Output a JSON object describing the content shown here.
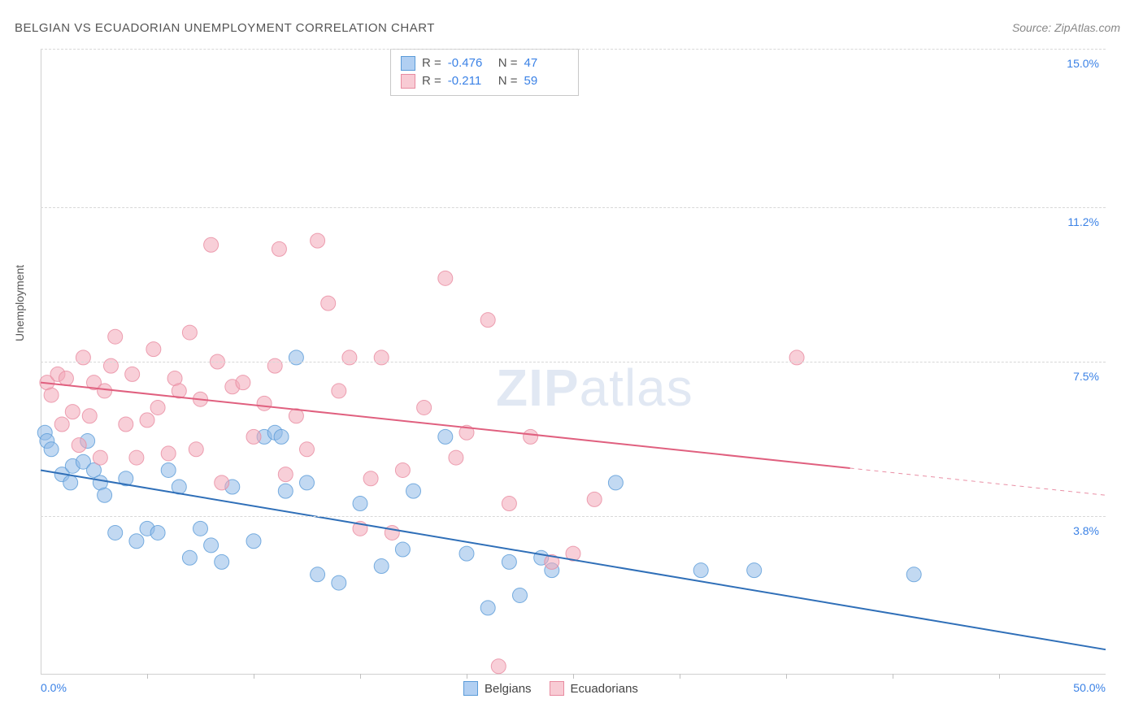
{
  "title": "BELGIAN VS ECUADORIAN UNEMPLOYMENT CORRELATION CHART",
  "source_prefix": "Source: ",
  "source_name": "ZipAtlas.com",
  "y_axis_label": "Unemployment",
  "watermark_bold": "ZIP",
  "watermark_rest": "atlas",
  "chart": {
    "type": "scatter",
    "xlim": [
      0,
      50
    ],
    "ylim": [
      0,
      15
    ],
    "x_ticks_minor": [
      5,
      10,
      15,
      20,
      25,
      30,
      35,
      40,
      45
    ],
    "x_tick_labels": {
      "min": "0.0%",
      "max": "50.0%"
    },
    "y_grid": [
      {
        "value": 3.8,
        "label": "3.8%"
      },
      {
        "value": 7.5,
        "label": "7.5%"
      },
      {
        "value": 11.2,
        "label": "11.2%"
      },
      {
        "value": 15.0,
        "label": "15.0%"
      }
    ],
    "background_color": "#ffffff",
    "grid_color": "#d8d8d8",
    "axis_color": "#d0d0d0",
    "marker_radius": 9,
    "marker_opacity": 0.55,
    "series": [
      {
        "name": "Belgians",
        "color_fill": "#8fb9e8",
        "color_stroke": "#5a9bd8",
        "line_color": "#2f6fb8",
        "line_width": 2,
        "R": "-0.476",
        "N": "47",
        "trend": {
          "x1": 0,
          "y1": 4.9,
          "x2": 50,
          "y2": 0.6,
          "dash_from_x": null
        },
        "points": [
          [
            0.2,
            5.8
          ],
          [
            0.3,
            5.6
          ],
          [
            0.5,
            5.4
          ],
          [
            1.0,
            4.8
          ],
          [
            1.4,
            4.6
          ],
          [
            1.5,
            5.0
          ],
          [
            2.0,
            5.1
          ],
          [
            2.5,
            4.9
          ],
          [
            2.8,
            4.6
          ],
          [
            3.0,
            4.3
          ],
          [
            2.2,
            5.6
          ],
          [
            3.5,
            3.4
          ],
          [
            4.0,
            4.7
          ],
          [
            4.5,
            3.2
          ],
          [
            5.0,
            3.5
          ],
          [
            5.5,
            3.4
          ],
          [
            6.0,
            4.9
          ],
          [
            6.5,
            4.5
          ],
          [
            7.0,
            2.8
          ],
          [
            7.5,
            3.5
          ],
          [
            8.0,
            3.1
          ],
          [
            8.5,
            2.7
          ],
          [
            9.0,
            4.5
          ],
          [
            10.0,
            3.2
          ],
          [
            10.5,
            5.7
          ],
          [
            11.0,
            5.8
          ],
          [
            11.3,
            5.7
          ],
          [
            11.5,
            4.4
          ],
          [
            12.0,
            7.6
          ],
          [
            12.5,
            4.6
          ],
          [
            13.0,
            2.4
          ],
          [
            14.0,
            2.2
          ],
          [
            15.0,
            4.1
          ],
          [
            16.0,
            2.6
          ],
          [
            17.0,
            3.0
          ],
          [
            17.5,
            4.4
          ],
          [
            19.0,
            5.7
          ],
          [
            20.0,
            2.9
          ],
          [
            21.0,
            1.6
          ],
          [
            22.0,
            2.7
          ],
          [
            22.5,
            1.9
          ],
          [
            23.5,
            2.8
          ],
          [
            24.0,
            2.5
          ],
          [
            27.0,
            4.6
          ],
          [
            31.0,
            2.5
          ],
          [
            33.5,
            2.5
          ],
          [
            41.0,
            2.4
          ]
        ]
      },
      {
        "name": "Ecuadorians",
        "color_fill": "#f2a8b8",
        "color_stroke": "#e88ba0",
        "line_color": "#e0607f",
        "line_width": 2,
        "R": "-0.211",
        "N": "59",
        "trend": {
          "x1": 0,
          "y1": 7.0,
          "x2": 50,
          "y2": 4.3,
          "dash_from_x": 38
        },
        "points": [
          [
            0.3,
            7.0
          ],
          [
            0.5,
            6.7
          ],
          [
            0.8,
            7.2
          ],
          [
            1.0,
            6.0
          ],
          [
            1.2,
            7.1
          ],
          [
            1.5,
            6.3
          ],
          [
            1.8,
            5.5
          ],
          [
            2.0,
            7.6
          ],
          [
            2.3,
            6.2
          ],
          [
            2.5,
            7.0
          ],
          [
            2.8,
            5.2
          ],
          [
            3.0,
            6.8
          ],
          [
            3.3,
            7.4
          ],
          [
            3.5,
            8.1
          ],
          [
            4.0,
            6.0
          ],
          [
            4.3,
            7.2
          ],
          [
            4.5,
            5.2
          ],
          [
            5.0,
            6.1
          ],
          [
            5.3,
            7.8
          ],
          [
            5.5,
            6.4
          ],
          [
            6.0,
            5.3
          ],
          [
            6.3,
            7.1
          ],
          [
            6.5,
            6.8
          ],
          [
            7.0,
            8.2
          ],
          [
            7.3,
            5.4
          ],
          [
            7.5,
            6.6
          ],
          [
            8.0,
            10.3
          ],
          [
            8.3,
            7.5
          ],
          [
            8.5,
            4.6
          ],
          [
            9.0,
            6.9
          ],
          [
            9.5,
            7.0
          ],
          [
            10.0,
            5.7
          ],
          [
            10.5,
            6.5
          ],
          [
            11.0,
            7.4
          ],
          [
            11.5,
            4.8
          ],
          [
            12.0,
            6.2
          ],
          [
            12.5,
            5.4
          ],
          [
            13.0,
            10.4
          ],
          [
            13.5,
            8.9
          ],
          [
            14.0,
            6.8
          ],
          [
            14.5,
            7.6
          ],
          [
            15.0,
            3.5
          ],
          [
            15.5,
            4.7
          ],
          [
            16.0,
            7.6
          ],
          [
            16.5,
            3.4
          ],
          [
            17.0,
            4.9
          ],
          [
            18.0,
            6.4
          ],
          [
            19.0,
            9.5
          ],
          [
            19.5,
            5.2
          ],
          [
            20.0,
            5.8
          ],
          [
            21.0,
            8.5
          ],
          [
            21.5,
            0.2
          ],
          [
            22.0,
            4.1
          ],
          [
            23.0,
            5.7
          ],
          [
            24.0,
            2.7
          ],
          [
            25.0,
            2.9
          ],
          [
            26.0,
            4.2
          ],
          [
            35.5,
            7.6
          ],
          [
            11.2,
            10.2
          ]
        ]
      }
    ]
  },
  "stats_legend": {
    "R_label": "R =",
    "N_label": "N ="
  },
  "series_legend_labels": [
    "Belgians",
    "Ecuadorians"
  ]
}
